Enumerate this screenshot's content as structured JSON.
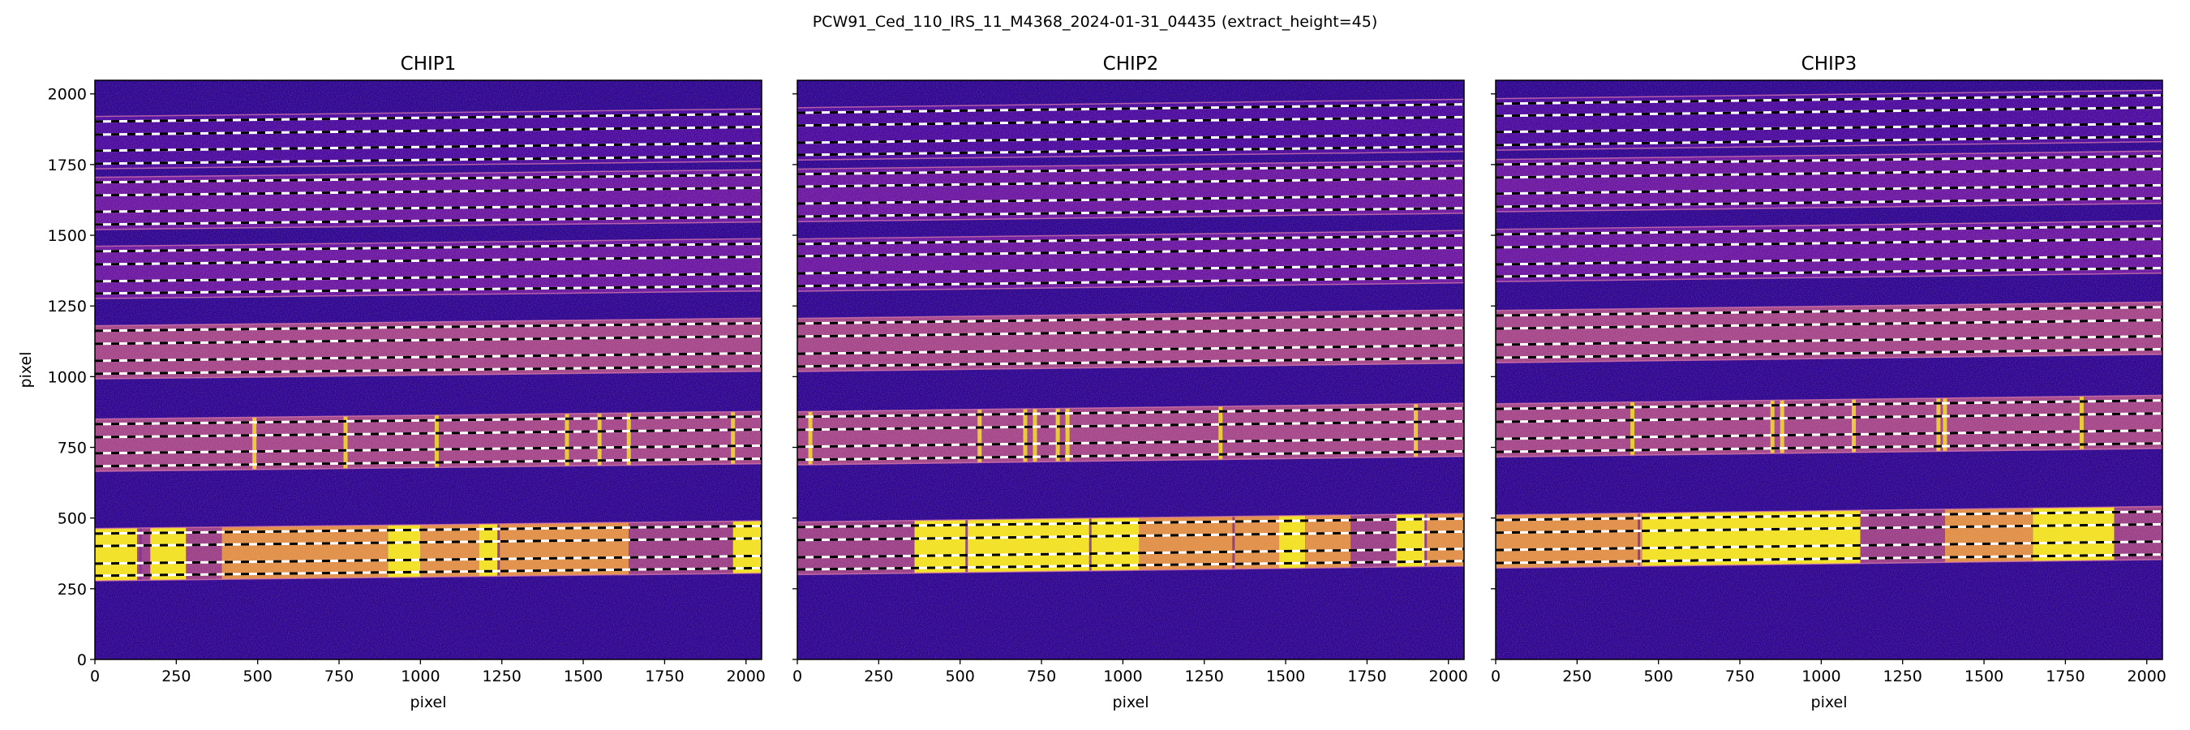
{
  "figure_title": "PCW91_Ced_110_IRS_11_M4368_2024-01-31_04435  (extract_height=45)",
  "colors": {
    "background": "#2c0594",
    "dim": "#4a0aa3",
    "faint": "#6a17a6",
    "medium": "#a4468e",
    "orange": "#e0904a",
    "yellow": "#f2e326",
    "dark": "#9a3f8c"
  },
  "chart_data": {
    "type": "heatmap",
    "xlim": [
      0,
      2048
    ],
    "ylim": [
      0,
      2048
    ],
    "xticks": [
      0,
      250,
      500,
      750,
      1000,
      1250,
      1500,
      1750,
      2000
    ],
    "yticks": [
      0,
      250,
      500,
      750,
      1000,
      1250,
      1500,
      1750,
      2000
    ],
    "xtick_labels": [
      "0",
      "250",
      "500",
      "750",
      "1000",
      "1250",
      "1500",
      "1750",
      "2000"
    ],
    "ytick_labels": [
      "0",
      "250",
      "500",
      "750",
      "1000",
      "1250",
      "1500",
      "1750",
      "2000"
    ],
    "xlabel": "pixel",
    "ylabel": "pixel",
    "chips": [
      {
        "title": "CHIP1",
        "slope": 27,
        "orders": [
          {
            "traces": [
              1902,
              1856,
              1799,
              1753
            ],
            "level": "dim"
          },
          {
            "traces": [
              1687,
              1641,
              1583,
              1538
            ],
            "level": "faint"
          },
          {
            "traces": [
              1443,
              1397,
              1337,
              1294
            ],
            "level": "faint"
          },
          {
            "traces": [
              1162,
              1116,
              1056,
              1010
            ],
            "level": "medium"
          },
          {
            "traces": [
              832,
              786,
              729,
              683
            ],
            "level": "medium",
            "lines": [
              490,
              770,
              1050,
              1450,
              1550,
              1640,
              1960
            ]
          },
          {
            "traces": [
              445,
              401,
              339,
              296
            ],
            "level": "bright",
            "segments": [
              [
                0,
                130,
                "yellow"
              ],
              [
                130,
                170,
                "dark"
              ],
              [
                170,
                280,
                "yellow"
              ],
              [
                280,
                390,
                "dark"
              ],
              [
                390,
                900,
                "orange"
              ],
              [
                900,
                1000,
                "yellow"
              ],
              [
                1000,
                1180,
                "orange"
              ],
              [
                1180,
                1240,
                "yellow"
              ],
              [
                1240,
                1640,
                "orange"
              ],
              [
                1640,
                1960,
                "dark"
              ],
              [
                1960,
                2048,
                "yellow"
              ]
            ],
            "lines": [
              140,
              1240
            ]
          }
        ]
      },
      {
        "title": "CHIP2",
        "slope": 30,
        "orders": [
          {
            "traces": [
              1933,
              1888,
              1827,
              1784
            ],
            "level": "dim"
          },
          {
            "traces": [
              1716,
              1672,
              1612,
              1566
            ],
            "level": "faint"
          },
          {
            "traces": [
              1469,
              1426,
              1365,
              1320
            ],
            "level": "faint"
          },
          {
            "traces": [
              1188,
              1142,
              1081,
              1036
            ],
            "level": "medium"
          },
          {
            "traces": [
              858,
              812,
              752,
              706
            ],
            "level": "medium",
            "lines": [
              40,
              560,
              700,
              730,
              800,
              830,
              1300,
              1900
            ]
          },
          {
            "traces": [
              468,
              422,
              361,
              318
            ],
            "level": "bright",
            "segments": [
              [
                0,
                360,
                "dark"
              ],
              [
                360,
                1050,
                "yellow"
              ],
              [
                1050,
                1480,
                "orange"
              ],
              [
                1480,
                1560,
                "yellow"
              ],
              [
                1560,
                1700,
                "orange"
              ],
              [
                1700,
                1840,
                "dark"
              ],
              [
                1840,
                1930,
                "yellow"
              ],
              [
                1930,
                2048,
                "orange"
              ]
            ],
            "lines": [
              520,
              900,
              1340,
              1930
            ]
          }
        ]
      },
      {
        "title": "CHIP3",
        "slope": 30,
        "orders": [
          {
            "traces": [
              1965,
              1922,
              1865,
              1819
            ],
            "level": "dim"
          },
          {
            "traces": [
              1750,
              1704,
              1647,
              1601
            ],
            "level": "faint"
          },
          {
            "traces": [
              1503,
              1457,
              1397,
              1354
            ],
            "level": "faint"
          },
          {
            "traces": [
              1216,
              1170,
              1113,
              1067
            ],
            "level": "medium"
          },
          {
            "traces": [
              886,
              840,
              780,
              734
            ],
            "level": "medium",
            "lines": [
              420,
              850,
              880,
              1100,
              1360,
              1380,
              1800
            ]
          },
          {
            "traces": [
              493,
              448,
              387,
              341
            ],
            "level": "bright",
            "segments": [
              [
                0,
                450,
                "orange"
              ],
              [
                450,
                1120,
                "yellow"
              ],
              [
                1120,
                1380,
                "dark"
              ],
              [
                1380,
                1650,
                "orange"
              ],
              [
                1650,
                1900,
                "yellow"
              ],
              [
                1900,
                2048,
                "dark"
              ]
            ],
            "lines": [
              440
            ]
          }
        ]
      }
    ]
  }
}
